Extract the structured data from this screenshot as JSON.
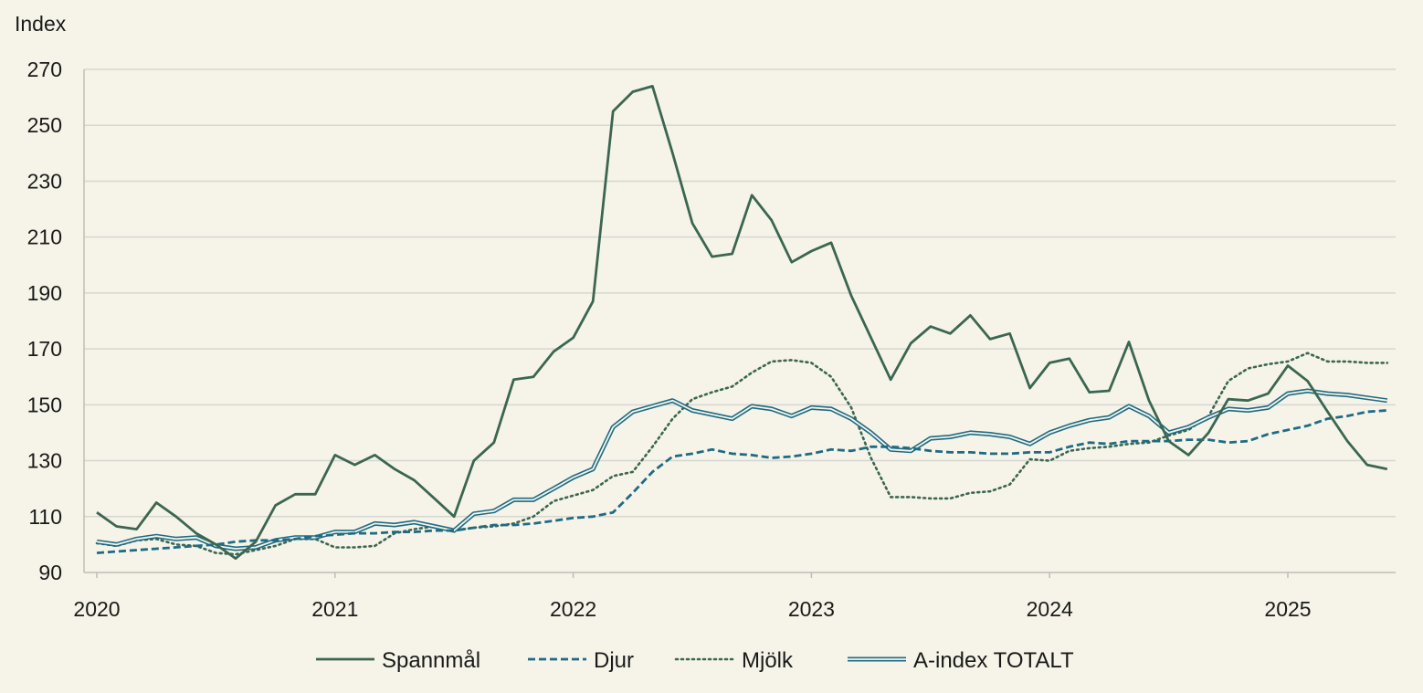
{
  "chart_data": {
    "type": "line",
    "ylabel": "Index",
    "ylim": [
      90,
      270
    ],
    "yticks": [
      90,
      110,
      130,
      150,
      170,
      190,
      210,
      230,
      250,
      270
    ],
    "xlim": [
      2020,
      2025.5
    ],
    "xticks": [
      "2020",
      "2021",
      "2022",
      "2023",
      "2024",
      "2025"
    ],
    "grid": "horizontal",
    "legend": "bottom-center",
    "x": [
      2020.0,
      2020.083,
      2020.167,
      2020.25,
      2020.333,
      2020.417,
      2020.5,
      2020.583,
      2020.667,
      2020.75,
      2020.833,
      2020.917,
      2021.0,
      2021.083,
      2021.167,
      2021.25,
      2021.333,
      2021.417,
      2021.5,
      2021.583,
      2021.667,
      2021.75,
      2021.833,
      2021.917,
      2022.0,
      2022.083,
      2022.167,
      2022.25,
      2022.333,
      2022.417,
      2022.5,
      2022.583,
      2022.667,
      2022.75,
      2022.833,
      2022.917,
      2023.0,
      2023.083,
      2023.167,
      2023.25,
      2023.333,
      2023.417,
      2023.5,
      2023.583,
      2023.667,
      2023.75,
      2023.833,
      2023.917,
      2024.0,
      2024.083,
      2024.167,
      2024.25,
      2024.333,
      2024.417,
      2024.5,
      2024.583,
      2024.667,
      2024.75,
      2024.833,
      2024.917,
      2025.0,
      2025.083,
      2025.167,
      2025.25,
      2025.333,
      2025.417
    ],
    "series": [
      {
        "name": "Spannmål",
        "style": "solid",
        "color": "#3b6652",
        "values": [
          111.5,
          106.5,
          105.5,
          115,
          110,
          104,
          100,
          95,
          101,
          114,
          118,
          118,
          132,
          128.5,
          132,
          127,
          123,
          116.5,
          110,
          130,
          136.5,
          159,
          160,
          169,
          174,
          187,
          255,
          262,
          264,
          240,
          215,
          203,
          204,
          225,
          216,
          201,
          205,
          208,
          189,
          174,
          159,
          172,
          178,
          175.5,
          182,
          173.5,
          175.5,
          156,
          165,
          166.5,
          154.5,
          155,
          172.5,
          151.5,
          137,
          132,
          140,
          152,
          151.5,
          154,
          164,
          158.5,
          147.5,
          137,
          128.5,
          127
        ]
      },
      {
        "name": "Djur",
        "style": "dashed",
        "color": "#1e6b85",
        "values": [
          97,
          97.5,
          98,
          98.5,
          99,
          99.5,
          100,
          101,
          101.5,
          101.5,
          102,
          103,
          103.5,
          104,
          104,
          104.5,
          104.5,
          105,
          105,
          106,
          107,
          107,
          107.5,
          108.5,
          109.5,
          110,
          111.5,
          118.5,
          126,
          131.5,
          132.5,
          134,
          132.5,
          132,
          131,
          131.5,
          132.5,
          134,
          133.5,
          135,
          135,
          134.5,
          133.5,
          133,
          133,
          132.5,
          132.5,
          133,
          133,
          135,
          136.5,
          136,
          137,
          137,
          137,
          137.5,
          137.5,
          136.5,
          137,
          139.5,
          141,
          142.5,
          145,
          146,
          147.5,
          148
        ]
      },
      {
        "name": "Mjölk",
        "style": "dotted",
        "color": "#3b6652",
        "values": [
          100.5,
          99.5,
          101.5,
          102,
          100,
          99.5,
          97,
          96.5,
          98,
          99.5,
          102,
          102,
          99,
          99,
          99.5,
          104,
          105.5,
          106.5,
          105,
          106,
          106.5,
          107.5,
          110,
          115.5,
          117.5,
          119.5,
          124.5,
          126,
          135,
          145,
          152,
          154.5,
          156.5,
          161.5,
          165.5,
          166,
          165,
          160,
          149,
          131,
          117,
          117,
          116.5,
          116.5,
          118.5,
          119,
          121.5,
          130.5,
          130,
          133.5,
          134.5,
          135,
          136,
          136.5,
          139,
          141,
          146,
          158.5,
          163,
          164.5,
          165.5,
          168.5,
          165.5,
          165.5,
          165,
          165
        ]
      },
      {
        "name": "A-index TOTALT",
        "style": "double",
        "color": "#1e6b85",
        "values": [
          101,
          100,
          102,
          103,
          102,
          102.5,
          99.5,
          98.5,
          99,
          101.5,
          102.5,
          102.5,
          104.5,
          104.5,
          107.5,
          107,
          108,
          106.5,
          105,
          111,
          112,
          116,
          116,
          120,
          124,
          127,
          142,
          147.5,
          149.5,
          151.5,
          148,
          146.5,
          145,
          149.5,
          148.5,
          146,
          149,
          148.5,
          145,
          140,
          134,
          133.5,
          138,
          138.5,
          140,
          139.5,
          138.5,
          136,
          140,
          142.5,
          144.5,
          145.5,
          149.5,
          146,
          140,
          142,
          145.5,
          148.5,
          148,
          149,
          154,
          155,
          154,
          153.5,
          152.5,
          151.5
        ]
      }
    ]
  }
}
